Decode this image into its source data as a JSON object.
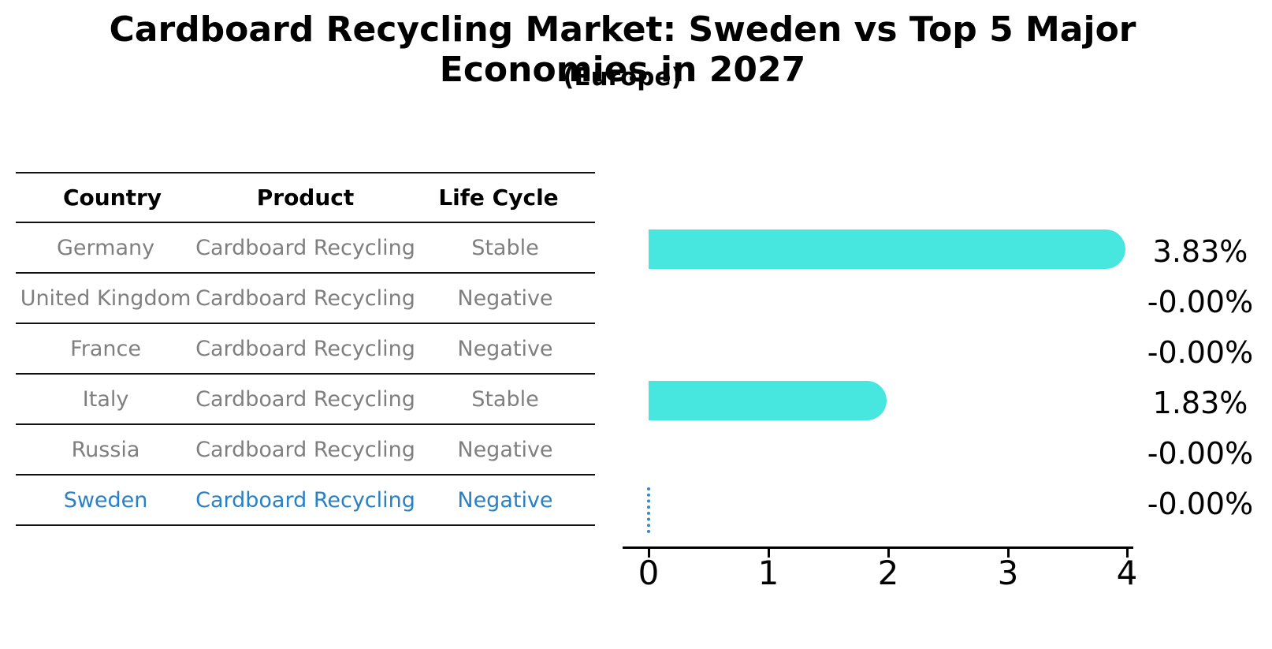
{
  "title": "Cardboard Recycling Market: Sweden vs Top 5 Major Economies in 2027",
  "subtitle": "(Europe)",
  "colors": {
    "bar": "#47e7e0",
    "highlight_text": "#2a80c4",
    "zero_marker": "#3a87c0",
    "table_text": "#7f7f7f",
    "line": "#111111"
  },
  "table": {
    "headers": [
      "Country",
      "Product",
      "Life Cycle"
    ],
    "rows": [
      {
        "country": "Germany",
        "product": "Cardboard Recycling",
        "life_cycle": "Stable",
        "highlighted": false
      },
      {
        "country": "United Kingdom",
        "product": "Cardboard Recycling",
        "life_cycle": "Negative",
        "highlighted": false
      },
      {
        "country": "France",
        "product": "Cardboard Recycling",
        "life_cycle": "Negative",
        "highlighted": false
      },
      {
        "country": "Italy",
        "product": "Cardboard Recycling",
        "life_cycle": "Stable",
        "highlighted": false
      },
      {
        "country": "Russia",
        "product": "Cardboard Recycling",
        "life_cycle": "Negative",
        "highlighted": false
      },
      {
        "country": "Sweden",
        "product": "Cardboard Recycling",
        "life_cycle": "Negative",
        "highlighted": true
      }
    ]
  },
  "chart_data": {
    "type": "bar",
    "orientation": "horizontal",
    "title": "Cardboard Recycling Market: Sweden vs Top 5 Major Economies in 2027 (Europe)",
    "categories": [
      "Germany",
      "United Kingdom",
      "France",
      "Italy",
      "Russia",
      "Sweden"
    ],
    "values": [
      3.83,
      -0.0,
      -0.0,
      1.83,
      -0.0,
      -0.0
    ],
    "value_labels": [
      "3.83%",
      "-0.00%",
      "-0.00%",
      "1.83%",
      "-0.00%",
      "-0.00%"
    ],
    "xlim": [
      0,
      4
    ],
    "x_ticks": [
      0,
      1,
      2,
      3,
      4
    ],
    "grid": false,
    "legend": false,
    "bar_color": "#47e7e0",
    "highlighted_category": "Sweden",
    "highlight_marker": "blue dotted line at x=0"
  }
}
